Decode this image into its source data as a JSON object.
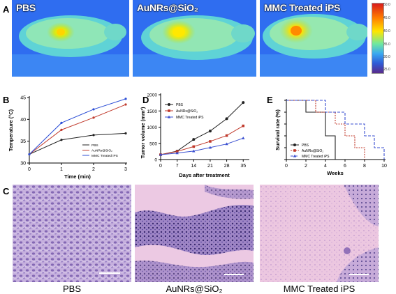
{
  "panel_a": {
    "label": "A",
    "images": [
      {
        "title": "PBS"
      },
      {
        "title": "AuNRs@SiO₂"
      },
      {
        "title": "MMC Treated iPS"
      }
    ],
    "colorbar": {
      "ticks": [
        "50.0",
        "45.0",
        "40.0",
        "35.0",
        "30.0",
        "25.0"
      ]
    }
  },
  "panel_c": {
    "label": "C",
    "captions": [
      "PBS",
      "AuNRs@SiO₂",
      "MMC Treated iPS"
    ]
  },
  "chart_data": [
    {
      "panel": "B",
      "type": "line",
      "xlabel": "Time (min)",
      "ylabel": "Temperature (°C)",
      "x": [
        0,
        1,
        2,
        3
      ],
      "xticks": [
        "0",
        "1",
        "2",
        "3"
      ],
      "yticks": [
        "30",
        "35",
        "40",
        "45"
      ],
      "xlim": [
        0,
        3
      ],
      "ylim": [
        30,
        45
      ],
      "series": [
        {
          "name": "PBS",
          "color": "#222222",
          "values": [
            32,
            35.3,
            36.4,
            36.8
          ]
        },
        {
          "name": "AuNRs@SiO₂",
          "color": "#c0392b",
          "values": [
            32,
            37.6,
            40.4,
            43.4
          ]
        },
        {
          "name": "MMC Treated iPS",
          "color": "#2d4fd6",
          "values": [
            32,
            39.2,
            42.3,
            44.7
          ]
        }
      ],
      "legend": "bottom-right"
    },
    {
      "panel": "D",
      "type": "line",
      "xlabel": "Days after treatment",
      "ylabel": "Tumor volume (mm³)",
      "x": [
        0,
        7,
        14,
        21,
        28,
        35
      ],
      "xticks": [
        "0",
        "7",
        "14",
        "21",
        "28",
        "35"
      ],
      "yticks": [
        "0",
        "500",
        "1000",
        "1500",
        "2000"
      ],
      "xlim": [
        0,
        37
      ],
      "ylim": [
        0,
        2000
      ],
      "series": [
        {
          "name": "PBS",
          "color": "#222222",
          "values": [
            150,
            260,
            620,
            880,
            1260,
            1760
          ]
        },
        {
          "name": "AuNRs@SiO₂",
          "color": "#c0392b",
          "values": [
            150,
            250,
            400,
            560,
            740,
            1040
          ]
        },
        {
          "name": "MMC Treated iPS",
          "color": "#3a4fd0",
          "values": [
            150,
            200,
            260,
            370,
            480,
            660
          ]
        }
      ],
      "legend": "top-left"
    },
    {
      "panel": "E",
      "type": "line",
      "xlabel": "Weeks",
      "ylabel": "Survival rate (%)",
      "xticks": [
        "0",
        "2",
        "4",
        "6",
        "8",
        "10"
      ],
      "yticks": [
        "0",
        "20",
        "40",
        "60",
        "80",
        "100"
      ],
      "xlim": [
        0,
        10
      ],
      "ylim": [
        0,
        100
      ],
      "series": [
        {
          "name": "PBS",
          "color": "#222222",
          "steps": [
            [
              0,
              100
            ],
            [
              2,
              100
            ],
            [
              2,
              80
            ],
            [
              4,
              80
            ],
            [
              4,
              40
            ],
            [
              5,
              40
            ],
            [
              5,
              0
            ]
          ]
        },
        {
          "name": "AuNRs@SiO₂",
          "color": "#c0392b",
          "steps": [
            [
              0,
              100
            ],
            [
              3,
              100
            ],
            [
              3,
              80
            ],
            [
              5,
              80
            ],
            [
              5,
              60
            ],
            [
              6,
              60
            ],
            [
              6,
              40
            ],
            [
              7,
              40
            ],
            [
              7,
              20
            ],
            [
              8,
              20
            ],
            [
              8,
              0
            ]
          ]
        },
        {
          "name": "MMC Treated iPS",
          "color": "#3a4fd0",
          "steps": [
            [
              0,
              100
            ],
            [
              4,
              100
            ],
            [
              4,
              80
            ],
            [
              6,
              80
            ],
            [
              6,
              60
            ],
            [
              8,
              60
            ],
            [
              8,
              40
            ],
            [
              9,
              40
            ],
            [
              9,
              20
            ],
            [
              10,
              20
            ],
            [
              10,
              0
            ]
          ]
        }
      ],
      "legend": "bottom-left"
    }
  ]
}
